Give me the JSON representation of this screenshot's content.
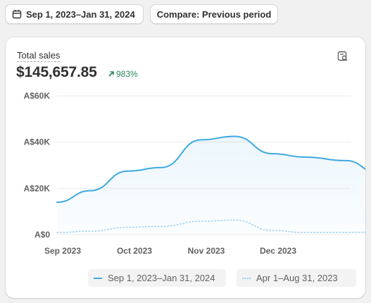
{
  "toolbar": {
    "date_range_label": "Sep 1, 2023–Jan 31, 2024",
    "compare_label": "Compare: Previous period"
  },
  "card": {
    "metric_label": "Total sales",
    "metric_value": "$145,657.85",
    "metric_change": "983%",
    "change_color": "#29845a"
  },
  "chart_data": {
    "type": "area",
    "title": "",
    "xlabel": "",
    "ylabel": "",
    "x_ticks": [
      "Sep 2023",
      "Oct 2023",
      "Nov 2023",
      "Dec 2023"
    ],
    "y_ticks": [
      "A$0",
      "A$20K",
      "A$40K",
      "A$60K"
    ],
    "ylim": [
      0,
      60000
    ],
    "grid": true,
    "legend_placement": "bottom-center",
    "x": [
      "2023-09-01",
      "2023-09-15",
      "2023-10-01",
      "2023-10-15",
      "2023-11-01",
      "2023-11-15",
      "2023-12-01",
      "2023-12-15",
      "2024-01-01",
      "2024-01-15",
      "2024-01-31"
    ],
    "series": [
      {
        "name": "Sep 1, 2023–Jan 31, 2024",
        "style": "solid",
        "color": "#3ea8e0",
        "values": [
          14000,
          19000,
          27500,
          29000,
          41000,
          42500,
          35000,
          33500,
          32000,
          26500,
          26000
        ]
      },
      {
        "name": "Apr 1–Aug 31, 2023",
        "style": "dotted",
        "color": "#9fd1ee",
        "values": [
          900,
          1500,
          3200,
          3600,
          5800,
          6300,
          1800,
          900,
          1000,
          1100,
          1100
        ]
      }
    ]
  }
}
